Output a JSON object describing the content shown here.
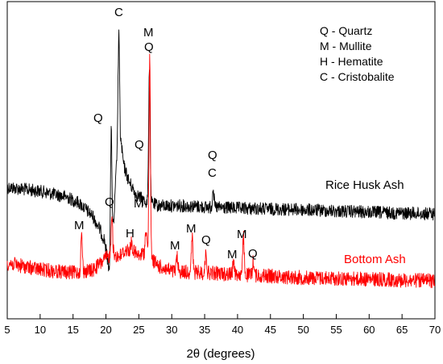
{
  "chart_data": {
    "type": "line",
    "title": "",
    "xlabel": "2θ (degrees)",
    "ylabel": "",
    "xlim": [
      5,
      70
    ],
    "x_ticks": [
      5,
      10,
      15,
      20,
      25,
      30,
      35,
      40,
      45,
      50,
      55,
      60,
      65,
      70
    ],
    "y_ticks_shown": false,
    "legend_placement": "top-right",
    "legend_entries": [
      "Q - Quartz",
      "M - Mullite",
      "H - Hematite",
      "C - Cristobalite"
    ],
    "series": [
      {
        "name": "Rice Husk Ash",
        "color": "#000000",
        "profile": [
          [
            5,
            232
          ],
          [
            10,
            237
          ],
          [
            14,
            244
          ],
          [
            16,
            252
          ],
          [
            18,
            268
          ],
          [
            19,
            283
          ],
          [
            19.8,
            298
          ],
          [
            20.5,
            335
          ],
          [
            21.2,
            275
          ],
          [
            21.7,
            185
          ],
          [
            21.95,
            30
          ],
          [
            22.2,
            170
          ],
          [
            22.7,
            205
          ],
          [
            23.5,
            225
          ],
          [
            24.5,
            240
          ],
          [
            26,
            250
          ],
          [
            28,
            255
          ],
          [
            32,
            255
          ],
          [
            36,
            257
          ],
          [
            40,
            258
          ],
          [
            50,
            260
          ],
          [
            60,
            263
          ],
          [
            70,
            265
          ]
        ],
        "peaks": [
          [
            26.6,
            82
          ],
          [
            36.3,
            232
          ],
          [
            20.8,
            163
          ]
        ]
      },
      {
        "name": "Bottom Ash",
        "color": "#ff0000",
        "profile": [
          [
            5,
            326
          ],
          [
            10,
            334
          ],
          [
            15,
            338
          ],
          [
            18,
            335
          ],
          [
            20,
            320
          ],
          [
            21,
            315
          ],
          [
            22,
            318
          ],
          [
            23,
            310
          ],
          [
            24,
            310
          ],
          [
            25,
            318
          ],
          [
            26,
            312
          ],
          [
            28,
            330
          ],
          [
            30,
            336
          ],
          [
            35,
            338
          ],
          [
            40,
            340
          ],
          [
            50,
            344
          ],
          [
            60,
            346
          ],
          [
            70,
            348
          ]
        ],
        "peaks": [
          [
            16.3,
            290
          ],
          [
            20.9,
            262
          ],
          [
            23.9,
            300
          ],
          [
            26.1,
            282
          ],
          [
            26.65,
            75
          ],
          [
            30.8,
            318
          ],
          [
            33.1,
            293
          ],
          [
            35.2,
            312
          ],
          [
            39.4,
            320
          ],
          [
            40.9,
            293
          ],
          [
            42.4,
            322
          ]
        ]
      }
    ],
    "peak_annotations": [
      {
        "text": "C",
        "x": 21.9,
        "series": "Rice Husk Ash"
      },
      {
        "text": "M",
        "x": 26.5,
        "series": "Rice Husk Ash"
      },
      {
        "text": "Q",
        "x": 26.5,
        "series": "Rice Husk Ash"
      },
      {
        "text": "Q",
        "x": 19.3,
        "series": "Rice Husk Ash"
      },
      {
        "text": "Q",
        "x": 25.0,
        "series": "Rice Husk Ash"
      },
      {
        "text": "Q",
        "x": 36.3,
        "series": "Rice Husk Ash"
      },
      {
        "text": "C",
        "x": 36.3,
        "series": "Rice Husk Ash"
      },
      {
        "text": "M",
        "x": 16.3,
        "series": "Bottom Ash"
      },
      {
        "text": "Q",
        "x": 20.8,
        "series": "Bottom Ash"
      },
      {
        "text": "H",
        "x": 23.6,
        "series": "Bottom Ash"
      },
      {
        "text": "M",
        "x": 25.7,
        "series": "Bottom Ash"
      },
      {
        "text": "M",
        "x": 30.7,
        "series": "Bottom Ash"
      },
      {
        "text": "M",
        "x": 33.1,
        "series": "Bottom Ash"
      },
      {
        "text": "Q",
        "x": 35.2,
        "series": "Bottom Ash"
      },
      {
        "text": "M",
        "x": 39.3,
        "series": "Bottom Ash"
      },
      {
        "text": "M",
        "x": 40.9,
        "series": "Bottom Ash"
      },
      {
        "text": "Q",
        "x": 42.3,
        "series": "Bottom Ash"
      }
    ],
    "series_labels": [
      "Rice Husk Ash",
      "Bottom Ash"
    ],
    "colors": {
      "rice_husk_ash": "#000000",
      "bottom_ash": "#ff0000",
      "axis": "#000000"
    }
  }
}
